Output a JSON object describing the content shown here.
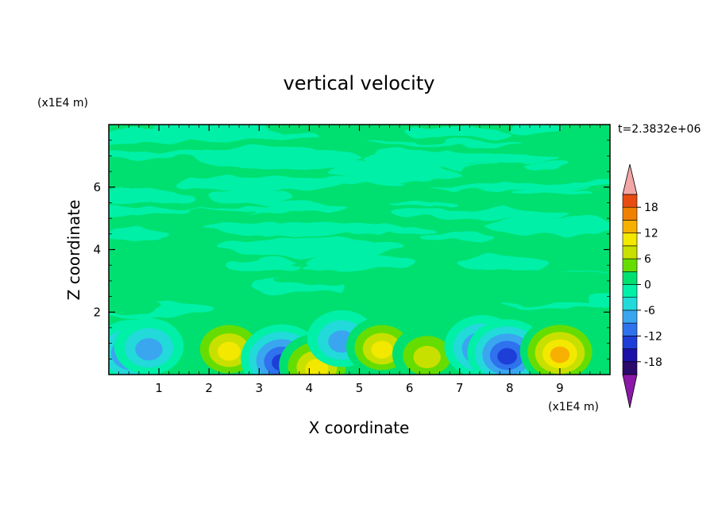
{
  "chart_data": {
    "type": "heatmap",
    "title": "vertical velocity",
    "xlabel": "X coordinate",
    "ylabel": "Z coordinate",
    "x_unit": "(x1E4 m)",
    "y_unit": "(x1E4 m)",
    "time_label": "t=2.3832e+06",
    "xlim": [
      0,
      10
    ],
    "ylim": [
      0,
      8
    ],
    "x_ticks": [
      1,
      2,
      3,
      4,
      5,
      6,
      7,
      8,
      9
    ],
    "y_ticks": [
      2,
      4,
      6
    ],
    "colorbar": {
      "levels": [
        -21,
        -18,
        -15,
        -12,
        -9,
        -6,
        -3,
        0,
        3,
        6,
        9,
        12,
        15,
        18,
        21
      ],
      "tick_labels": [
        "18",
        "12",
        "6",
        "0",
        "-6",
        "-12",
        "-18"
      ],
      "tick_values": [
        18,
        12,
        6,
        0,
        -6,
        -12,
        -18
      ],
      "colors": [
        "#2a0a6a",
        "#1c10a8",
        "#1e3ed8",
        "#2e72ee",
        "#3aa6f0",
        "#22dada",
        "#00f0a8",
        "#00e070",
        "#66dd00",
        "#c8e000",
        "#f2e800",
        "#f8b000",
        "#f08000",
        "#e84c10",
        "#d81818"
      ],
      "under_color": "#8a19a8",
      "over_color": "#f3a6a6"
    },
    "background_value": 0.5,
    "features": [
      {
        "x": 0.45,
        "z": 0.75,
        "value": -12
      },
      {
        "x": 0.8,
        "z": 0.9,
        "value": -9
      },
      {
        "x": 2.4,
        "z": 0.85,
        "value": 12
      },
      {
        "x": 3.45,
        "z": 0.5,
        "value": -15
      },
      {
        "x": 4.15,
        "z": 0.3,
        "value": 12
      },
      {
        "x": 4.65,
        "z": 1.15,
        "value": -9
      },
      {
        "x": 5.45,
        "z": 0.9,
        "value": 10
      },
      {
        "x": 6.35,
        "z": 0.65,
        "value": 9
      },
      {
        "x": 7.45,
        "z": 0.9,
        "value": -12
      },
      {
        "x": 7.95,
        "z": 0.7,
        "value": -14
      },
      {
        "x": 9.0,
        "z": 0.75,
        "value": 14
      }
    ]
  }
}
